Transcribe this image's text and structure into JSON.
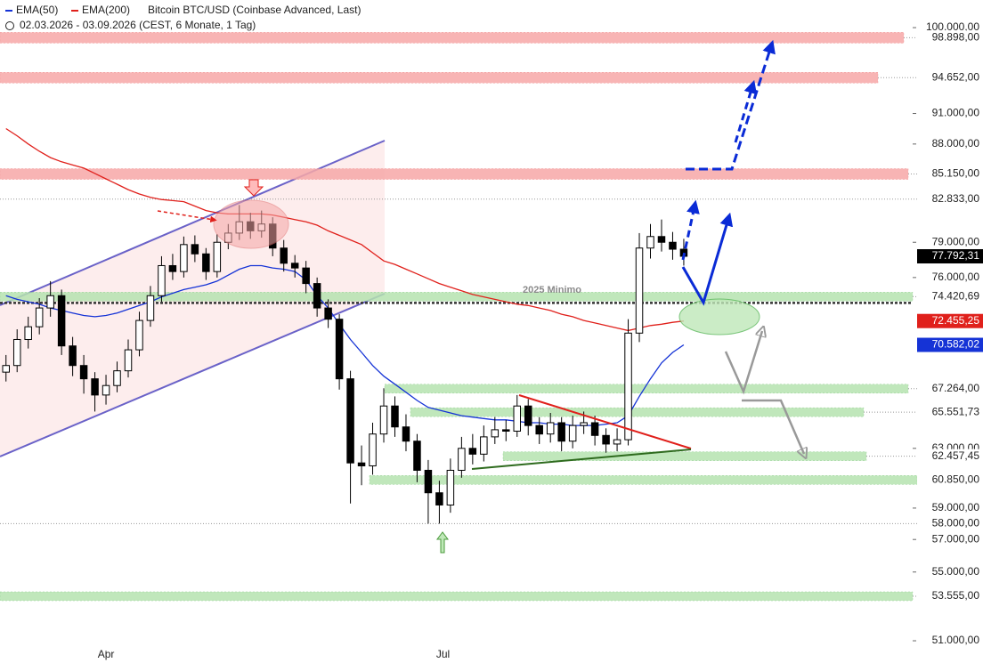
{
  "chart_data": {
    "type": "candlestick",
    "title": "Bitcoin BTC/USD (Coinbase Advanced, Last)",
    "subtitle": "02.03.2026 - 03.09.2026 (CEST, 6 Monate, 1 Tag)",
    "annotation": "2025 Minimo",
    "log_scale": true,
    "candles": {
      "up_color": "#ffffff",
      "down_color": "#000000",
      "last_label": "77.792,31",
      "last_color": "#000000",
      "ohlc": [
        [
          68500,
          69800,
          67800,
          69000
        ],
        [
          69000,
          71800,
          68500,
          71000
        ],
        [
          71000,
          72800,
          70300,
          72000
        ],
        [
          72000,
          74300,
          71400,
          73500
        ],
        [
          73500,
          75700,
          72800,
          74500
        ],
        [
          74500,
          75000,
          69800,
          70500
        ],
        [
          70500,
          71200,
          68200,
          69000
        ],
        [
          69000,
          69800,
          66900,
          68000
        ],
        [
          68000,
          68500,
          65600,
          66800
        ],
        [
          66800,
          68300,
          66100,
          67500
        ],
        [
          67500,
          69300,
          67000,
          68600
        ],
        [
          68600,
          71000,
          68100,
          70200
        ],
        [
          70200,
          73200,
          69700,
          72500
        ],
        [
          72500,
          75300,
          72000,
          74500
        ],
        [
          74500,
          77800,
          74000,
          77000
        ],
        [
          77000,
          78000,
          75800,
          76500
        ],
        [
          76500,
          79500,
          76000,
          78800
        ],
        [
          78800,
          79600,
          77300,
          78000
        ],
        [
          78000,
          78500,
          75800,
          76500
        ],
        [
          76500,
          79700,
          76000,
          79000
        ],
        [
          79000,
          80600,
          78400,
          79800
        ],
        [
          79800,
          82300,
          79200,
          80800
        ],
        [
          80800,
          81600,
          79300,
          80000
        ],
        [
          80000,
          81800,
          79400,
          80600
        ],
        [
          80600,
          81200,
          77800,
          78500
        ],
        [
          78500,
          79200,
          76500,
          77200
        ],
        [
          77200,
          77900,
          76000,
          76800
        ],
        [
          76800,
          77400,
          74700,
          75500
        ],
        [
          75500,
          76000,
          72800,
          73500
        ],
        [
          73500,
          74200,
          71900,
          72600
        ],
        [
          72600,
          73000,
          67200,
          68000
        ],
        [
          68000,
          68600,
          59300,
          62000
        ],
        [
          62000,
          63200,
          60500,
          61800
        ],
        [
          61800,
          64800,
          61200,
          64000
        ],
        [
          64000,
          67300,
          63400,
          66000
        ],
        [
          66000,
          66700,
          63800,
          64500
        ],
        [
          64500,
          65400,
          62800,
          63500
        ],
        [
          63500,
          64000,
          60700,
          61500
        ],
        [
          61500,
          62200,
          58000,
          60000
        ],
        [
          60000,
          60800,
          58000,
          59200
        ],
        [
          59200,
          62300,
          58700,
          61500
        ],
        [
          61500,
          63800,
          61000,
          63000
        ],
        [
          63000,
          64000,
          61900,
          62600
        ],
        [
          62600,
          64600,
          62100,
          63800
        ],
        [
          63800,
          65200,
          63300,
          64300
        ],
        [
          64300,
          65000,
          63500,
          64200
        ],
        [
          64200,
          66800,
          63800,
          66000
        ],
        [
          66000,
          66500,
          63900,
          64600
        ],
        [
          64600,
          65200,
          63300,
          64000
        ],
        [
          64000,
          65500,
          63400,
          64800
        ],
        [
          64800,
          65200,
          62800,
          63500
        ],
        [
          63500,
          65300,
          63000,
          64600
        ],
        [
          64600,
          65600,
          64000,
          64800
        ],
        [
          64800,
          65300,
          63200,
          63900
        ],
        [
          63900,
          64400,
          62700,
          63300
        ],
        [
          63300,
          64400,
          62800,
          63600
        ],
        [
          63600,
          72600,
          63200,
          71500
        ],
        [
          71500,
          79800,
          70800,
          78500
        ],
        [
          78500,
          80600,
          77600,
          79500
        ],
        [
          79500,
          81000,
          78200,
          79000
        ],
        [
          79000,
          79900,
          77500,
          78400
        ],
        [
          78400,
          79300,
          77000,
          77792.31
        ]
      ]
    },
    "series": [
      {
        "name": "EMA(50)",
        "color": "#1533d6",
        "last_label": "70.582,02",
        "values": [
          74500,
          74200,
          74000,
          73800,
          73500,
          73300,
          73100,
          72900,
          72800,
          72900,
          73100,
          73400,
          73700,
          74000,
          74400,
          74700,
          75000,
          75200,
          75400,
          75700,
          76200,
          76700,
          77000,
          77000,
          76800,
          76700,
          76500,
          75800,
          74500,
          73500,
          72200,
          71000,
          70000,
          69000,
          68200,
          67600,
          67000,
          66400,
          65900,
          65700,
          65500,
          65300,
          65200,
          65100,
          65000,
          65000,
          64900,
          64800,
          64800,
          64700,
          64700,
          64600,
          64600,
          64600,
          64700,
          64800,
          65300,
          66700,
          68000,
          69200,
          70000,
          70582.02
        ]
      },
      {
        "name": "EMA(200)",
        "color": "#e0201b",
        "last_label": "72.455,25",
        "values": [
          89500,
          88800,
          88000,
          87300,
          86700,
          86300,
          86000,
          85700,
          85200,
          84700,
          84200,
          83700,
          83300,
          83000,
          82800,
          82700,
          82600,
          82200,
          81800,
          81600,
          81500,
          81500,
          81500,
          81500,
          81400,
          81200,
          81000,
          80800,
          80500,
          80000,
          79600,
          79200,
          78800,
          78100,
          77400,
          77100,
          76700,
          76300,
          75900,
          75500,
          75200,
          74900,
          74600,
          74400,
          74200,
          74000,
          73800,
          73700,
          73500,
          73300,
          73000,
          72800,
          72500,
          72300,
          72100,
          71900,
          71700,
          71900,
          72100,
          72200,
          72350,
          72455.25
        ]
      }
    ],
    "xlim": [
      -0.54,
      81.6
    ],
    "xticks": [
      {
        "value": 9,
        "label": "Apr"
      },
      {
        "value": 39.33,
        "label": "Jul"
      }
    ],
    "ylim": [
      49770,
      103080
    ],
    "yticks": [
      {
        "value": 100000,
        "label": "100.000,00"
      },
      {
        "value": 91000,
        "label": "91.000,00"
      },
      {
        "value": 88000,
        "label": "88.000,00"
      },
      {
        "value": 79000,
        "label": "79.000,00"
      },
      {
        "value": 76000,
        "label": "76.000,00"
      },
      {
        "value": 63000,
        "label": "63.000,00"
      },
      {
        "value": 59000,
        "label": "59.000,00"
      },
      {
        "value": 57000,
        "label": "57.000,00"
      },
      {
        "value": 55000,
        "label": "55.000,00"
      },
      {
        "value": 51000,
        "label": "51.000,00"
      }
    ],
    "levels": [
      {
        "value": 98898,
        "label": "98.898,00",
        "kind": "resistance",
        "color": "#f7a8a8"
      },
      {
        "value": 94652,
        "label": "94.652,00",
        "kind": "resistance",
        "color": "#f7a8a8"
      },
      {
        "value": 85150,
        "label": "85.150,00",
        "kind": "resistance",
        "color": "#f7a8a8"
      },
      {
        "value": 82833,
        "label": "82.833,00",
        "kind": "line",
        "color": "#999999"
      },
      {
        "value": 74420.69,
        "label": "74.420,69",
        "kind": "support",
        "color": "#b6e3b0"
      },
      {
        "value": 67264,
        "label": "67.264,00",
        "kind": "support",
        "color": "#b6e3b0"
      },
      {
        "value": 65551.73,
        "label": "65.551,73",
        "kind": "support",
        "color": "#b6e3b0"
      },
      {
        "value": 62457.45,
        "label": "62.457,45",
        "kind": "support",
        "color": "#b6e3b0"
      },
      {
        "value": 60850,
        "label": "60.850,00",
        "kind": "support",
        "color": "#b6e3b0"
      },
      {
        "value": 58000,
        "label": "58.000,00",
        "kind": "line",
        "color": "#999999"
      },
      {
        "value": 53555,
        "label": "53.555,00",
        "kind": "support",
        "color": "#b6e3b0"
      }
    ]
  }
}
